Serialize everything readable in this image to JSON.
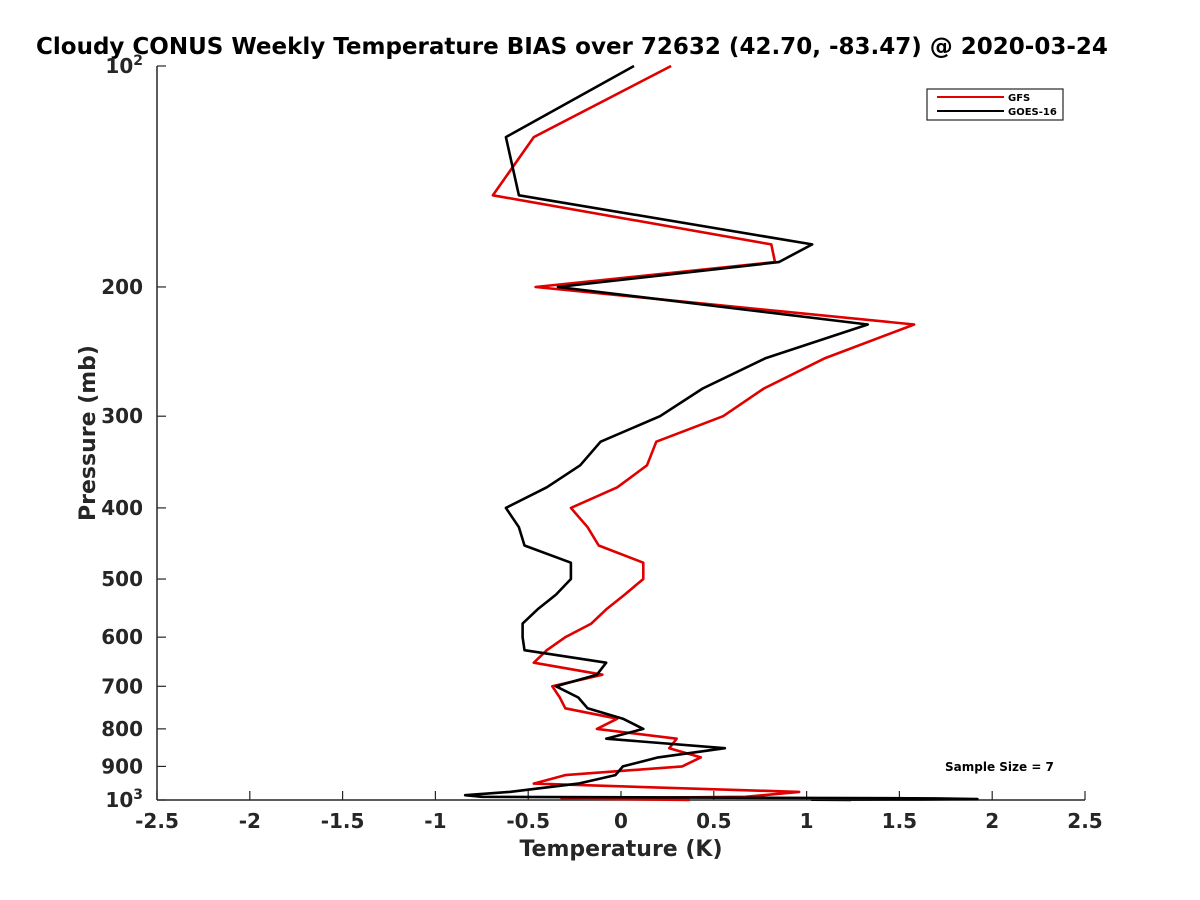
{
  "chart_data": {
    "type": "line",
    "title": "Cloudy CONUS Weekly Temperature BIAS over 72632 (42.70, -83.47) @ 2020-03-24",
    "xlabel": "Temperature (K)",
    "ylabel": "Pressure (mb)",
    "xlim": [
      -2.5,
      2.5
    ],
    "ylim": [
      100,
      1000
    ],
    "y_scale": "log",
    "y_reversed": true,
    "x_ticks": [
      -2.5,
      -2,
      -1.5,
      -1,
      -0.5,
      0,
      0.5,
      1,
      1.5,
      2,
      2.5
    ],
    "x_tick_labels": [
      "-2.5",
      "-2",
      "-1.5",
      "-1",
      "-0.5",
      "0",
      "0.5",
      "1",
      "1.5",
      "2",
      "2.5"
    ],
    "y_ticks": [
      100,
      200,
      300,
      400,
      500,
      600,
      700,
      800,
      900,
      1000
    ],
    "y_tick_labels": [
      {
        "base": "10",
        "exp": "2"
      },
      {
        "base": "200"
      },
      {
        "base": "300"
      },
      {
        "base": "400"
      },
      {
        "base": "500"
      },
      {
        "base": "600"
      },
      {
        "base": "700"
      },
      {
        "base": "800"
      },
      {
        "base": "900"
      },
      {
        "base": "10",
        "exp": "3"
      }
    ],
    "grid": false,
    "legend_position": "top-right",
    "annotation": "Sample Size = 7",
    "series": [
      {
        "name": "GFS",
        "color": "#e00000",
        "points": [
          [
            0.27,
            100
          ],
          [
            -0.47,
            125
          ],
          [
            -0.69,
            150
          ],
          [
            0.81,
            175
          ],
          [
            0.83,
            185
          ],
          [
            -0.46,
            200
          ],
          [
            1.58,
            225
          ],
          [
            1.1,
            250
          ],
          [
            0.77,
            275
          ],
          [
            0.55,
            300
          ],
          [
            0.19,
            325
          ],
          [
            0.14,
            350
          ],
          [
            -0.02,
            375
          ],
          [
            -0.27,
            400
          ],
          [
            -0.18,
            425
          ],
          [
            -0.12,
            450
          ],
          [
            0.12,
            475
          ],
          [
            0.12,
            500
          ],
          [
            0.02,
            525
          ],
          [
            -0.08,
            550
          ],
          [
            -0.16,
            575
          ],
          [
            -0.3,
            600
          ],
          [
            -0.4,
            625
          ],
          [
            -0.47,
            650
          ],
          [
            -0.1,
            675
          ],
          [
            -0.37,
            700
          ],
          [
            -0.33,
            725
          ],
          [
            -0.3,
            750
          ],
          [
            -0.02,
            775
          ],
          [
            -0.13,
            800
          ],
          [
            0.3,
            825
          ],
          [
            0.26,
            850
          ],
          [
            0.43,
            875
          ],
          [
            0.33,
            900
          ],
          [
            -0.3,
            925
          ],
          [
            -0.47,
            950
          ],
          [
            0.96,
            975
          ],
          [
            0.67,
            990
          ],
          [
            -0.32,
            995
          ],
          [
            0.37,
            1000
          ]
        ]
      },
      {
        "name": "GOES-16",
        "color": "#000000",
        "points": [
          [
            0.07,
            100
          ],
          [
            -0.62,
            125
          ],
          [
            -0.55,
            150
          ],
          [
            1.03,
            175
          ],
          [
            0.85,
            185
          ],
          [
            -0.34,
            200
          ],
          [
            1.33,
            225
          ],
          [
            0.78,
            250
          ],
          [
            0.44,
            275
          ],
          [
            0.21,
            300
          ],
          [
            -0.11,
            325
          ],
          [
            -0.22,
            350
          ],
          [
            -0.4,
            375
          ],
          [
            -0.62,
            400
          ],
          [
            -0.55,
            425
          ],
          [
            -0.52,
            450
          ],
          [
            -0.27,
            475
          ],
          [
            -0.27,
            500
          ],
          [
            -0.35,
            525
          ],
          [
            -0.45,
            550
          ],
          [
            -0.53,
            575
          ],
          [
            -0.53,
            600
          ],
          [
            -0.52,
            625
          ],
          [
            -0.08,
            650
          ],
          [
            -0.13,
            675
          ],
          [
            -0.35,
            700
          ],
          [
            -0.23,
            725
          ],
          [
            -0.18,
            750
          ],
          [
            0.01,
            775
          ],
          [
            0.12,
            800
          ],
          [
            -0.08,
            825
          ],
          [
            0.56,
            850
          ],
          [
            0.2,
            875
          ],
          [
            0.01,
            900
          ],
          [
            -0.03,
            925
          ],
          [
            -0.23,
            950
          ],
          [
            -0.6,
            975
          ],
          [
            -0.84,
            985
          ],
          [
            -0.75,
            990
          ],
          [
            1.7,
            995
          ],
          [
            1.92,
            997
          ],
          [
            1.62,
            998
          ],
          [
            1.03,
            999
          ],
          [
            1.24,
            1000
          ]
        ]
      }
    ]
  }
}
